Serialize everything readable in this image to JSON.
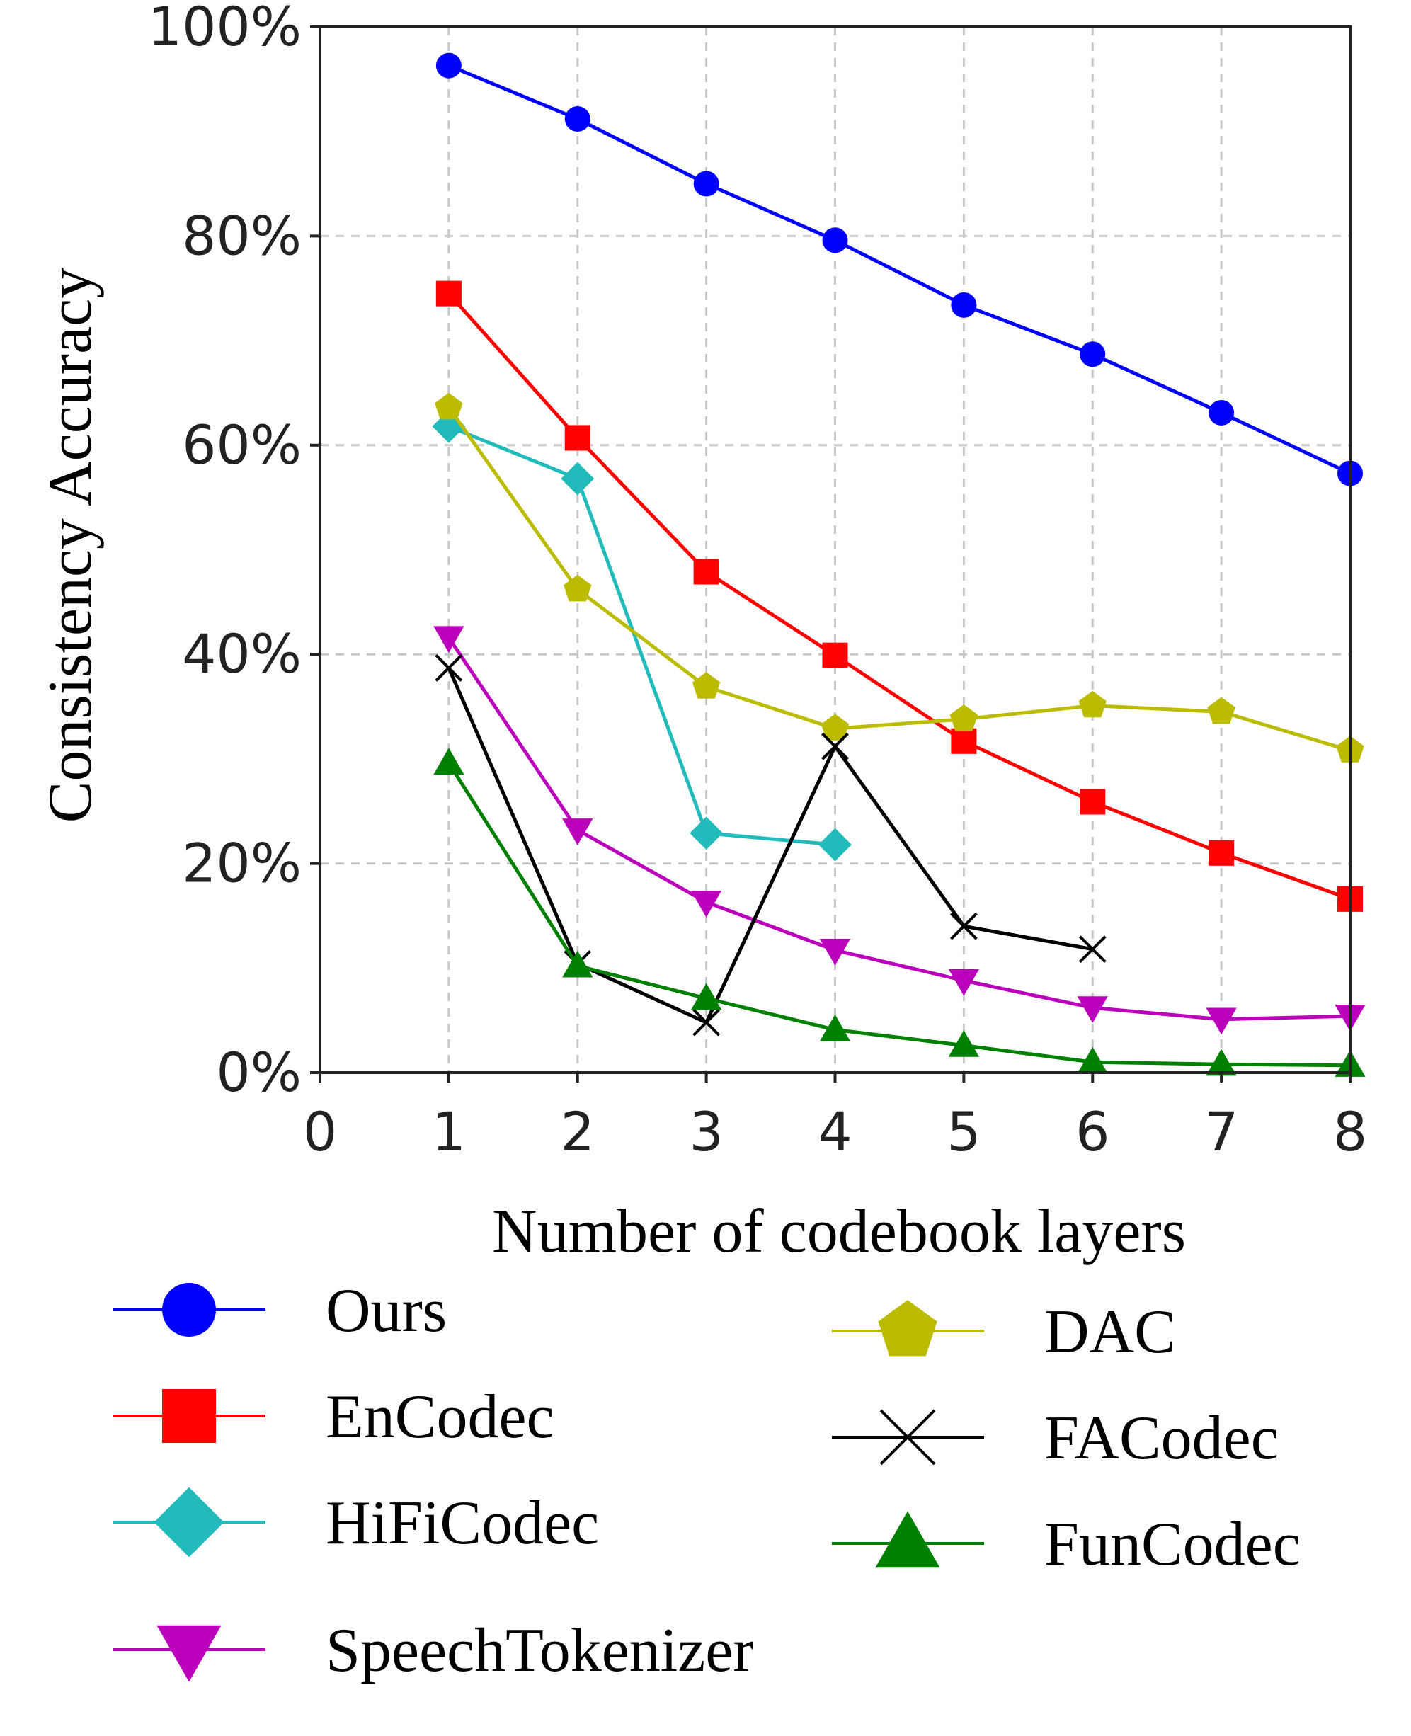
{
  "chart_data": {
    "type": "line",
    "xlabel": "Number of codebook layers",
    "ylabel": "Consistency Accuracy",
    "xlim": [
      0,
      8
    ],
    "ylim": [
      0,
      100
    ],
    "x_ticks": [
      "0",
      "1",
      "2",
      "3",
      "4",
      "5",
      "6",
      "7",
      "8"
    ],
    "y_ticks": [
      "0%",
      "20%",
      "40%",
      "60%",
      "80%",
      "100%"
    ],
    "grid": true,
    "legend_position": "bottom",
    "series": [
      {
        "name": "Ours",
        "color": "#0000ff",
        "marker": "circle",
        "x": [
          1,
          2,
          3,
          4,
          5,
          6,
          7,
          8
        ],
        "values": [
          96.3,
          91.2,
          85.0,
          79.6,
          73.4,
          68.7,
          63.1,
          57.3
        ]
      },
      {
        "name": "EnCodec",
        "color": "#ff0000",
        "marker": "square",
        "x": [
          1,
          2,
          3,
          4,
          5,
          6,
          7,
          8
        ],
        "values": [
          74.5,
          60.7,
          47.9,
          39.9,
          31.7,
          25.9,
          21.0,
          16.6
        ]
      },
      {
        "name": "HiFiCodec",
        "color": "#22bbbb",
        "marker": "diamond",
        "x": [
          1,
          2,
          3,
          4
        ],
        "values": [
          61.8,
          56.8,
          22.9,
          21.8
        ]
      },
      {
        "name": "SpeechTokenizer",
        "color": "#bb00bb",
        "marker": "triangle-down",
        "x": [
          1,
          2,
          3,
          4,
          5,
          6,
          7,
          8
        ],
        "values": [
          41.6,
          23.2,
          16.3,
          11.7,
          8.8,
          6.2,
          5.1,
          5.4
        ]
      },
      {
        "name": "DAC",
        "color": "#bbbb00",
        "marker": "pentagon",
        "x": [
          1,
          2,
          3,
          4,
          5,
          6,
          7,
          8
        ],
        "values": [
          63.6,
          46.2,
          36.9,
          32.9,
          33.8,
          35.1,
          34.5,
          30.8
        ]
      },
      {
        "name": "FACodec",
        "color": "#000000",
        "marker": "x",
        "x": [
          1,
          2,
          3,
          4,
          5,
          6
        ],
        "values": [
          38.7,
          10.4,
          4.8,
          31.2,
          14.0,
          11.8
        ]
      },
      {
        "name": "FunCodec",
        "color": "#008000",
        "marker": "triangle-up",
        "x": [
          1,
          2,
          3,
          4,
          5,
          6,
          7,
          8
        ],
        "values": [
          29.6,
          10.2,
          7.1,
          4.1,
          2.6,
          1.0,
          0.8,
          0.7
        ]
      }
    ]
  }
}
